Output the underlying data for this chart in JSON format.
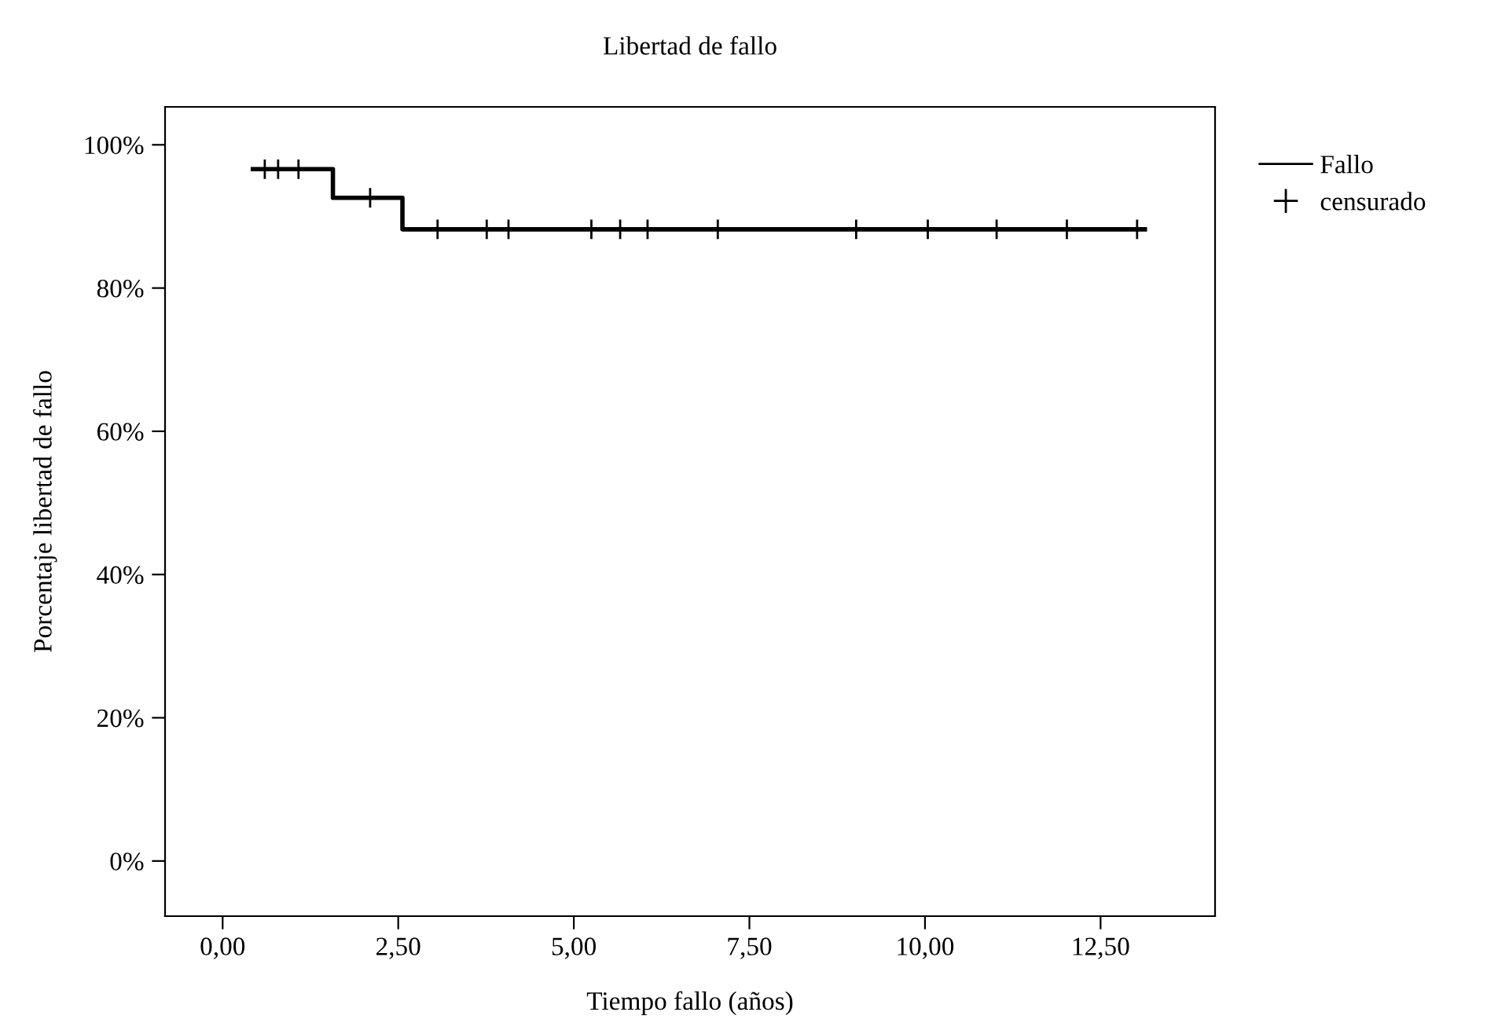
{
  "chart_data": {
    "type": "step",
    "title": "Libertad de fallo",
    "xlabel": "Tiempo fallo (años)",
    "ylabel": "Porcentaje libertad de fallo",
    "xlim": [
      -0.82,
      14.13
    ],
    "ylim": [
      -7.7,
      105.3
    ],
    "xticks": [
      {
        "value": 0,
        "label": "0,00"
      },
      {
        "value": 2.5,
        "label": "2,50"
      },
      {
        "value": 5,
        "label": "5,00"
      },
      {
        "value": 7.5,
        "label": "7,50"
      },
      {
        "value": 10,
        "label": "10,00"
      },
      {
        "value": 12.5,
        "label": "12,50"
      }
    ],
    "yticks": [
      {
        "value": 0,
        "label": "0%"
      },
      {
        "value": 20,
        "label": "20%"
      },
      {
        "value": 40,
        "label": "40%"
      },
      {
        "value": 60,
        "label": "60%"
      },
      {
        "value": 80,
        "label": "80%"
      },
      {
        "value": 100,
        "label": "100%"
      }
    ],
    "grid": false,
    "legend": "top right",
    "series": [
      {
        "name": "Fallo",
        "color": "#000000",
        "marker": "none",
        "x": [
          0.43,
          1.57,
          2.56,
          13.13
        ],
        "values": [
          96.6,
          92.6,
          88.2,
          88.2
        ]
      },
      {
        "name": "censurado",
        "type": "scatter",
        "color": "#000000",
        "marker": "cross",
        "x": [
          0.6,
          0.79,
          1.08,
          2.1,
          3.06,
          3.76,
          4.07,
          5.25,
          5.66,
          6.05,
          7.05,
          9.02,
          10.04,
          11.02,
          12.02,
          13.02
        ],
        "values": [
          96.6,
          96.6,
          96.6,
          92.6,
          88.2,
          88.2,
          88.2,
          88.2,
          88.2,
          88.2,
          88.2,
          88.2,
          88.2,
          88.2,
          88.2,
          88.2
        ]
      }
    ]
  }
}
